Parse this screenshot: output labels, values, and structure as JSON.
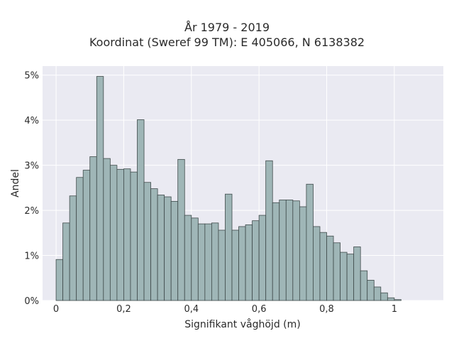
{
  "chart_data": {
    "type": "bar",
    "title_line1": "År 1979 - 2019",
    "title_line2": "Koordinat (Sweref 99 TM): E 405066, N 6138382",
    "xlabel": "Signifikant våghöjd (m)",
    "ylabel": "Andel",
    "xlim": [
      -0.04,
      1.145
    ],
    "ylim": [
      0,
      5.2
    ],
    "x_ticks": [
      0,
      0.2,
      0.4,
      0.6,
      0.8,
      1.0
    ],
    "x_tick_labels": [
      "0",
      "0,2",
      "0,4",
      "0,6",
      "0,8",
      "1"
    ],
    "y_ticks": [
      0,
      1,
      2,
      3,
      4,
      5
    ],
    "y_tick_labels": [
      "0%",
      "1%",
      "2%",
      "3%",
      "4%",
      "5%"
    ],
    "bin_start": 0.01,
    "bin_width": 0.02,
    "values": [
      0.91,
      1.72,
      2.32,
      2.73,
      2.89,
      3.19,
      4.97,
      3.15,
      3.0,
      2.91,
      2.92,
      2.85,
      4.01,
      2.62,
      2.48,
      2.34,
      2.3,
      2.2,
      3.13,
      1.89,
      1.83,
      1.7,
      1.7,
      1.72,
      1.56,
      2.36,
      1.56,
      1.64,
      1.68,
      1.77,
      1.89,
      3.1,
      2.17,
      2.23,
      2.23,
      2.21,
      2.08,
      2.58,
      1.64,
      1.51,
      1.43,
      1.28,
      1.07,
      1.03,
      1.19,
      0.66,
      0.45,
      0.3,
      0.17,
      0.06,
      0.02
    ],
    "grid": true,
    "colors": {
      "bar": "#9fb6b7",
      "bar_edge": "#3f4a4a",
      "plot_bg": "#eaeaf2",
      "grid": "#ffffff"
    }
  }
}
